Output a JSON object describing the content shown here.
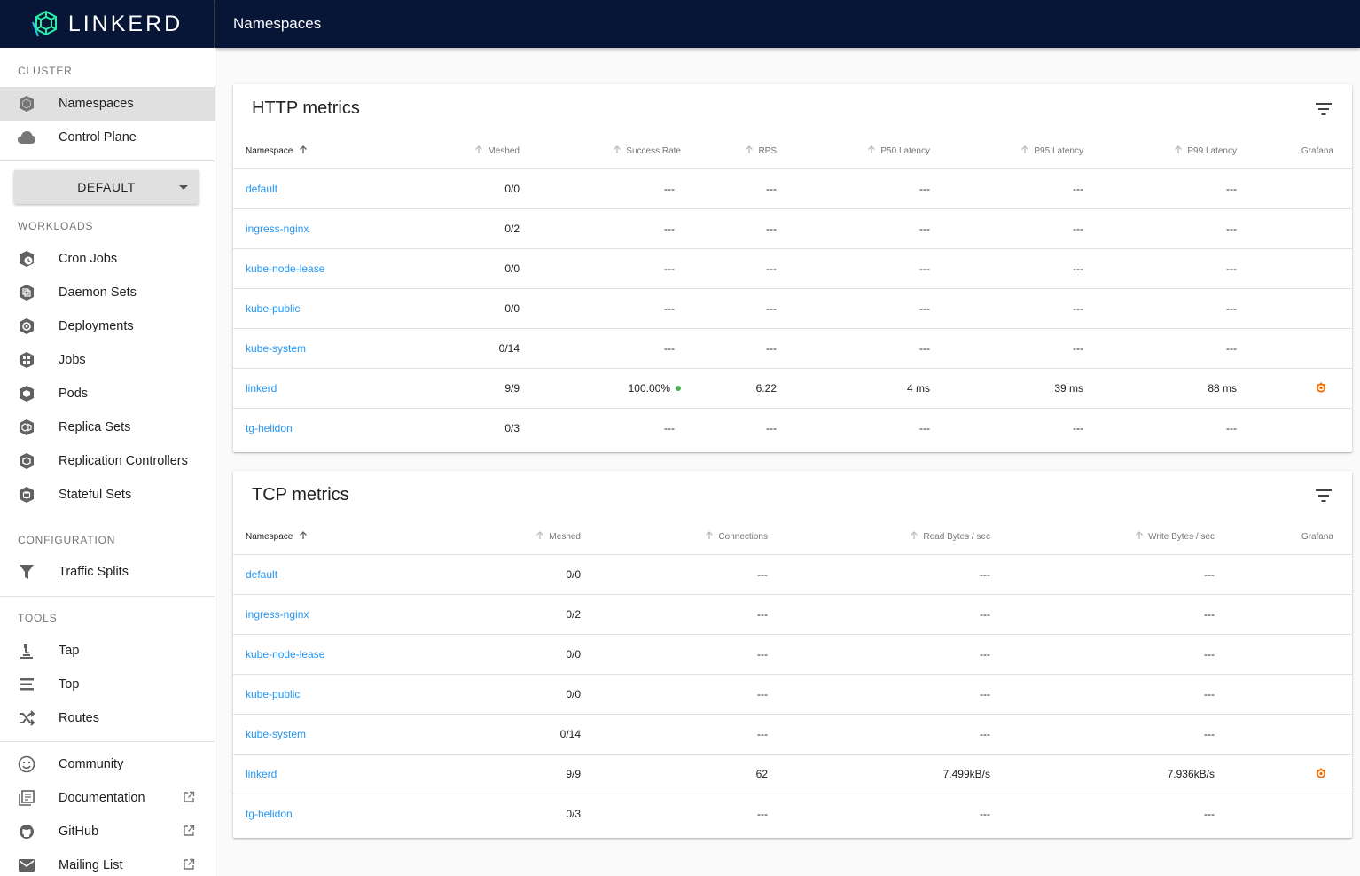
{
  "brand": {
    "name": "LINKERD"
  },
  "appbar": {
    "title": "Namespaces"
  },
  "sidebar": {
    "cluster_header": "CLUSTER",
    "cluster_items": [
      {
        "label": "Namespaces",
        "icon": "namespace-icon",
        "active": true
      },
      {
        "label": "Control Plane",
        "icon": "cloud-icon"
      }
    ],
    "namespace_select": "DEFAULT",
    "workloads_header": "WORKLOADS",
    "workload_items": [
      {
        "label": "Cron Jobs",
        "icon": "cronjob-icon"
      },
      {
        "label": "Daemon Sets",
        "icon": "daemonset-icon"
      },
      {
        "label": "Deployments",
        "icon": "deployment-icon"
      },
      {
        "label": "Jobs",
        "icon": "job-icon"
      },
      {
        "label": "Pods",
        "icon": "pod-icon"
      },
      {
        "label": "Replica Sets",
        "icon": "replicaset-icon"
      },
      {
        "label": "Replication Controllers",
        "icon": "replicationcontroller-icon"
      },
      {
        "label": "Stateful Sets",
        "icon": "statefulset-icon"
      }
    ],
    "configuration_header": "CONFIGURATION",
    "configuration_items": [
      {
        "label": "Traffic Splits",
        "icon": "funnel-icon"
      }
    ],
    "tools_header": "TOOLS",
    "tools_items": [
      {
        "label": "Tap",
        "icon": "microscope-icon"
      },
      {
        "label": "Top",
        "icon": "list-icon"
      },
      {
        "label": "Routes",
        "icon": "shuffle-icon"
      }
    ],
    "footer_items": [
      {
        "label": "Community",
        "icon": "smiley-icon",
        "external": false
      },
      {
        "label": "Documentation",
        "icon": "library-books-icon",
        "external": true
      },
      {
        "label": "GitHub",
        "icon": "github-icon",
        "external": true
      },
      {
        "label": "Mailing List",
        "icon": "email-icon",
        "external": true
      }
    ]
  },
  "http": {
    "title": "HTTP metrics",
    "columns": [
      "Namespace",
      "Meshed",
      "Success Rate",
      "RPS",
      "P50 Latency",
      "P95 Latency",
      "P99 Latency",
      "Grafana"
    ],
    "rows": [
      {
        "namespace": "default",
        "meshed": "0/0",
        "success_rate": "---",
        "rps": "---",
        "p50": "---",
        "p95": "---",
        "p99": "---",
        "grafana": false
      },
      {
        "namespace": "ingress-nginx",
        "meshed": "0/2",
        "success_rate": "---",
        "rps": "---",
        "p50": "---",
        "p95": "---",
        "p99": "---",
        "grafana": false
      },
      {
        "namespace": "kube-node-lease",
        "meshed": "0/0",
        "success_rate": "---",
        "rps": "---",
        "p50": "---",
        "p95": "---",
        "p99": "---",
        "grafana": false
      },
      {
        "namespace": "kube-public",
        "meshed": "0/0",
        "success_rate": "---",
        "rps": "---",
        "p50": "---",
        "p95": "---",
        "p99": "---",
        "grafana": false
      },
      {
        "namespace": "kube-system",
        "meshed": "0/14",
        "success_rate": "---",
        "rps": "---",
        "p50": "---",
        "p95": "---",
        "p99": "---",
        "grafana": false
      },
      {
        "namespace": "linkerd",
        "meshed": "9/9",
        "success_rate": "100.00%",
        "rps": "6.22",
        "p50": "4 ms",
        "p95": "39 ms",
        "p99": "88 ms",
        "grafana": true,
        "status_color": "#4caf50"
      },
      {
        "namespace": "tg-helidon",
        "meshed": "0/3",
        "success_rate": "---",
        "rps": "---",
        "p50": "---",
        "p95": "---",
        "p99": "---",
        "grafana": false
      }
    ]
  },
  "tcp": {
    "title": "TCP metrics",
    "columns": [
      "Namespace",
      "Meshed",
      "Connections",
      "Read Bytes / sec",
      "Write Bytes / sec",
      "Grafana"
    ],
    "rows": [
      {
        "namespace": "default",
        "meshed": "0/0",
        "connections": "---",
        "read": "---",
        "write": "---",
        "grafana": false
      },
      {
        "namespace": "ingress-nginx",
        "meshed": "0/2",
        "connections": "---",
        "read": "---",
        "write": "---",
        "grafana": false
      },
      {
        "namespace": "kube-node-lease",
        "meshed": "0/0",
        "connections": "---",
        "read": "---",
        "write": "---",
        "grafana": false
      },
      {
        "namespace": "kube-public",
        "meshed": "0/0",
        "connections": "---",
        "read": "---",
        "write": "---",
        "grafana": false
      },
      {
        "namespace": "kube-system",
        "meshed": "0/14",
        "connections": "---",
        "read": "---",
        "write": "---",
        "grafana": false
      },
      {
        "namespace": "linkerd",
        "meshed": "9/9",
        "connections": "62",
        "read": "7.499kB/s",
        "write": "7.936kB/s",
        "grafana": true
      },
      {
        "namespace": "tg-helidon",
        "meshed": "0/3",
        "connections": "---",
        "read": "---",
        "write": "---",
        "grafana": false
      }
    ]
  },
  "colors": {
    "appbar": "#071636",
    "link": "#2196f3",
    "grafana": "#f46800",
    "success": "#4caf50"
  }
}
